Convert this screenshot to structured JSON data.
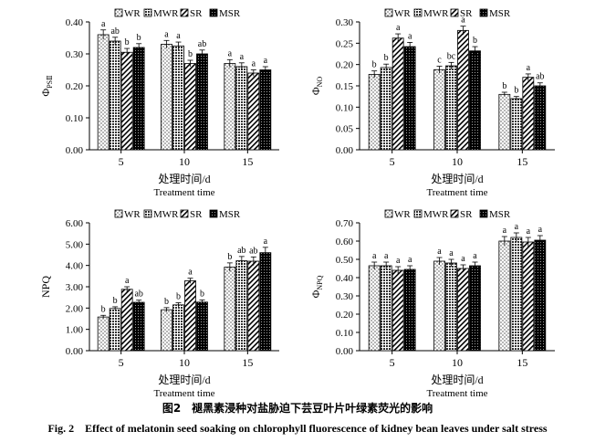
{
  "figure": {
    "caption_cn": "图2　褪黑素浸种对盐胁迫下芸豆叶片叶绿素荧光的影响",
    "caption_en": "Fig. 2　Effect of melatonin seed soaking on chlorophyll fluorescence of kidney bean leaves under salt stress"
  },
  "legend": [
    "WR",
    "MWR",
    "SR",
    "MSR"
  ],
  "chart_data": [
    {
      "type": "bar",
      "ylabel": "Φ",
      "ylabel_sub": "PSⅡ",
      "xlabel_cn": "处理时间/d",
      "xlabel_en": "Treatment time",
      "categories": [
        "5",
        "10",
        "15"
      ],
      "ylim": [
        0,
        0.4
      ],
      "yticks": [
        "0.00",
        "0.10",
        "0.20",
        "0.30",
        "0.40"
      ],
      "legend_position": "top-right",
      "series": [
        {
          "name": "WR",
          "values": [
            0.36,
            0.33,
            0.27
          ],
          "errors": [
            0.015,
            0.012,
            0.012
          ],
          "letters": [
            "a",
            "a",
            "a"
          ]
        },
        {
          "name": "MWR",
          "values": [
            0.34,
            0.325,
            0.26
          ],
          "errors": [
            0.012,
            0.012,
            0.012
          ],
          "letters": [
            "ab",
            "a",
            "a"
          ]
        },
        {
          "name": "SR",
          "values": [
            0.305,
            0.27,
            0.24
          ],
          "errors": [
            0.012,
            0.01,
            0.01
          ],
          "letters": [
            "b",
            "b",
            "a"
          ]
        },
        {
          "name": "MSR",
          "values": [
            0.32,
            0.3,
            0.25
          ],
          "errors": [
            0.012,
            0.012,
            0.01
          ],
          "letters": [
            "b",
            "ab",
            "a"
          ]
        }
      ]
    },
    {
      "type": "bar",
      "ylabel": "Φ",
      "ylabel_sub": "NO",
      "xlabel_cn": "处理时间/d",
      "xlabel_en": "Treatment time",
      "categories": [
        "5",
        "10",
        "15"
      ],
      "ylim": [
        0,
        0.3
      ],
      "yticks": [
        "0.00",
        "0.05",
        "0.10",
        "0.15",
        "0.20",
        "0.25",
        "0.30"
      ],
      "legend_position": "top-right",
      "series": [
        {
          "name": "WR",
          "values": [
            0.177,
            0.188,
            0.13
          ],
          "errors": [
            0.008,
            0.008,
            0.005
          ],
          "letters": [
            "b",
            "c",
            "b"
          ]
        },
        {
          "name": "MWR",
          "values": [
            0.193,
            0.197,
            0.12
          ],
          "errors": [
            0.008,
            0.008,
            0.005
          ],
          "letters": [
            "b",
            "bc",
            "b"
          ]
        },
        {
          "name": "SR",
          "values": [
            0.262,
            0.28,
            0.17
          ],
          "errors": [
            0.01,
            0.01,
            0.008
          ],
          "letters": [
            "a",
            "a",
            "a"
          ]
        },
        {
          "name": "MSR",
          "values": [
            0.242,
            0.232,
            0.15
          ],
          "errors": [
            0.01,
            0.01,
            0.007
          ],
          "letters": [
            "a",
            "b",
            "ab"
          ]
        }
      ]
    },
    {
      "type": "bar",
      "ylabel": "NPQ",
      "ylabel_sub": "",
      "xlabel_cn": "处理时间/d",
      "xlabel_en": "Treatment time",
      "categories": [
        "5",
        "10",
        "15"
      ],
      "ylim": [
        0,
        6
      ],
      "yticks": [
        "0.00",
        "1.00",
        "2.00",
        "3.00",
        "4.00",
        "5.00",
        "6.00"
      ],
      "legend_position": "top-right",
      "series": [
        {
          "name": "WR",
          "values": [
            1.58,
            1.92,
            3.92
          ],
          "errors": [
            0.08,
            0.1,
            0.2
          ],
          "letters": [
            "b",
            "b",
            "b"
          ]
        },
        {
          "name": "MWR",
          "values": [
            1.98,
            2.15,
            4.22
          ],
          "errors": [
            0.08,
            0.1,
            0.2
          ],
          "letters": [
            "b",
            "b",
            "ab"
          ]
        },
        {
          "name": "SR",
          "values": [
            2.88,
            3.28,
            4.2
          ],
          "errors": [
            0.12,
            0.12,
            0.2
          ],
          "letters": [
            "a",
            "a",
            "ab"
          ]
        },
        {
          "name": "MSR",
          "values": [
            2.27,
            2.28,
            4.6
          ],
          "errors": [
            0.1,
            0.1,
            0.25
          ],
          "letters": [
            "ab",
            "b",
            "a"
          ]
        }
      ]
    },
    {
      "type": "bar",
      "ylabel": "Φ",
      "ylabel_sub": "NPQ",
      "xlabel_cn": "处理时间/d",
      "xlabel_en": "Treatment time",
      "categories": [
        "5",
        "10",
        "15"
      ],
      "ylim": [
        0,
        0.7
      ],
      "yticks": [
        "0.00",
        "0.10",
        "0.20",
        "0.30",
        "0.40",
        "0.50",
        "0.60",
        "0.70"
      ],
      "legend_position": "top-right",
      "series": [
        {
          "name": "WR",
          "values": [
            0.465,
            0.49,
            0.6
          ],
          "errors": [
            0.02,
            0.02,
            0.025
          ],
          "letters": [
            "a",
            "a",
            "a"
          ]
        },
        {
          "name": "MWR",
          "values": [
            0.465,
            0.48,
            0.62
          ],
          "errors": [
            0.02,
            0.02,
            0.025
          ],
          "letters": [
            "a",
            "a",
            "a"
          ]
        },
        {
          "name": "SR",
          "values": [
            0.44,
            0.45,
            0.595
          ],
          "errors": [
            0.02,
            0.02,
            0.025
          ],
          "letters": [
            "a",
            "a",
            "a"
          ]
        },
        {
          "name": "MSR",
          "values": [
            0.445,
            0.465,
            0.605
          ],
          "errors": [
            0.02,
            0.02,
            0.025
          ],
          "letters": [
            "a",
            "a",
            "a"
          ]
        }
      ]
    }
  ]
}
